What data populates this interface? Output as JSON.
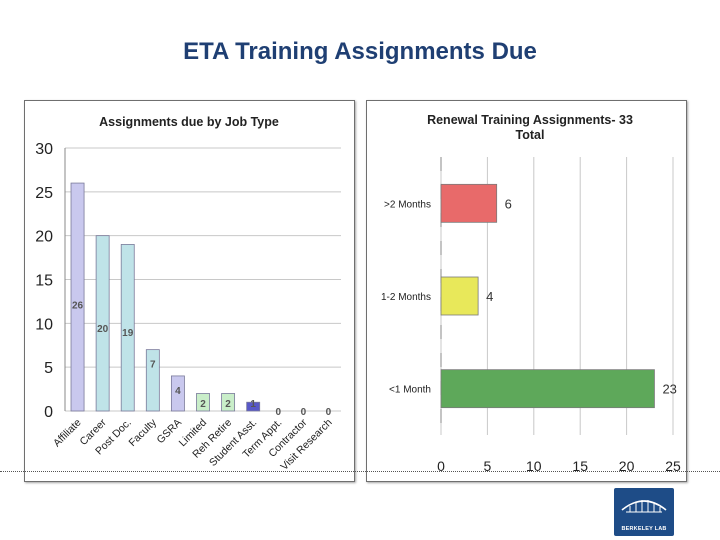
{
  "slide": {
    "title": "ETA Training Assignments Due"
  },
  "logo": {
    "text": "BERKELEY LAB"
  },
  "chart_data": [
    {
      "type": "bar",
      "title": "Assignments due by Job Type",
      "categories": [
        "Affiliate",
        "Career",
        "Post Doc.",
        "Faculty",
        "GSRA",
        "Limited",
        "Reh Retire",
        "Student Asst.",
        "Term Appt.",
        "Contractor",
        "Visit Research"
      ],
      "values": [
        26,
        20,
        19,
        7,
        4,
        2,
        2,
        1,
        0,
        0,
        0
      ],
      "data_labels": [
        "26",
        "20",
        "19",
        "7",
        "4",
        "2",
        "2",
        "1",
        "0",
        "0",
        "0"
      ],
      "colors": [
        "#c9c8ee",
        "#bfe3e8",
        "#bfe3e8",
        "#bfe3e8",
        "#c9c8ee",
        "#c9eec9",
        "#c9eec9",
        "#5858c8",
        "#c9eec9",
        "#c9eec9",
        "#c9eec9"
      ],
      "ylim": [
        0,
        30
      ],
      "yticks": [
        "0",
        "5",
        "10",
        "15",
        "20",
        "25",
        "30"
      ],
      "grid": true,
      "legend": "none"
    },
    {
      "type": "bar",
      "orientation": "horizontal",
      "title_lines": [
        "Renewal Training Assignments- 33",
        "Total"
      ],
      "categories": [
        ">2 Months",
        "1-2 Months",
        "<1 Month"
      ],
      "values": [
        6,
        4,
        23
      ],
      "data_labels": [
        "6",
        "4",
        "23"
      ],
      "colors": [
        "#e86a6a",
        "#e8e85a",
        "#5ea85a"
      ],
      "xlim": [
        0,
        25
      ],
      "xticks": [
        "0",
        "5",
        "10",
        "15",
        "20",
        "25"
      ],
      "grid": true,
      "legend": "none"
    }
  ]
}
